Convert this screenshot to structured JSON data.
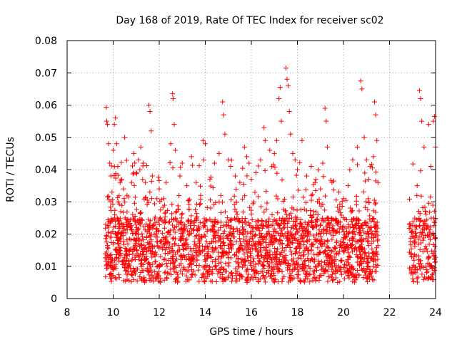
{
  "chart_data": {
    "type": "scatter",
    "title": "Day 168 of 2019, Rate Of TEC Index for receiver sc02",
    "xlabel": "GPS time / hours",
    "ylabel": "ROTI / TECUs",
    "xlim": [
      8,
      24
    ],
    "ylim": [
      0,
      0.08
    ],
    "x_ticks": [
      8,
      10,
      12,
      14,
      16,
      18,
      20,
      22,
      24
    ],
    "x_tick_labels": [
      "8",
      "10",
      "12",
      "14",
      "16",
      "18",
      "20",
      "22",
      "24"
    ],
    "y_ticks": [
      0,
      0.01,
      0.02,
      0.03,
      0.04,
      0.05,
      0.06,
      0.07,
      0.08
    ],
    "y_tick_labels": [
      "0",
      "0.01",
      "0.02",
      "0.03",
      "0.04",
      "0.05",
      "0.06",
      "0.07",
      "0.08"
    ],
    "grid": true,
    "marker": "+",
    "color": "#ff0000",
    "series": [
      {
        "name": "sc02",
        "points": [
          [
            9.7,
            0.0593
          ],
          [
            9.72,
            0.055
          ],
          [
            9.75,
            0.054
          ],
          [
            9.8,
            0.048
          ],
          [
            9.85,
            0.042
          ],
          [
            9.9,
            0.038
          ],
          [
            9.95,
            0.033
          ],
          [
            10.0,
            0.046
          ],
          [
            10.05,
            0.054
          ],
          [
            10.1,
            0.056
          ],
          [
            10.15,
            0.048
          ],
          [
            10.2,
            0.041
          ],
          [
            10.3,
            0.036
          ],
          [
            10.45,
            0.034
          ],
          [
            10.5,
            0.05
          ],
          [
            10.6,
            0.032
          ],
          [
            10.8,
            0.036
          ],
          [
            10.9,
            0.045
          ],
          [
            11.0,
            0.039
          ],
          [
            11.1,
            0.043
          ],
          [
            11.2,
            0.047
          ],
          [
            11.3,
            0.042
          ],
          [
            11.4,
            0.036
          ],
          [
            11.55,
            0.06
          ],
          [
            11.6,
            0.058
          ],
          [
            11.65,
            0.052
          ],
          [
            11.7,
            0.038
          ],
          [
            11.9,
            0.031
          ],
          [
            12.0,
            0.034
          ],
          [
            12.2,
            0.031
          ],
          [
            12.3,
            0.036
          ],
          [
            12.5,
            0.048
          ],
          [
            12.58,
            0.0635
          ],
          [
            12.6,
            0.062
          ],
          [
            12.65,
            0.054
          ],
          [
            12.7,
            0.046
          ],
          [
            12.9,
            0.038
          ],
          [
            13.0,
            0.042
          ],
          [
            13.2,
            0.035
          ],
          [
            13.4,
            0.044
          ],
          [
            13.6,
            0.036
          ],
          [
            13.8,
            0.032
          ],
          [
            13.9,
            0.049
          ],
          [
            14.0,
            0.048
          ],
          [
            14.2,
            0.037
          ],
          [
            14.4,
            0.042
          ],
          [
            14.6,
            0.045
          ],
          [
            14.75,
            0.061
          ],
          [
            14.8,
            0.057
          ],
          [
            14.85,
            0.051
          ],
          [
            15.0,
            0.043
          ],
          [
            15.1,
            0.041
          ],
          [
            15.3,
            0.038
          ],
          [
            15.5,
            0.036
          ],
          [
            15.7,
            0.047
          ],
          [
            15.8,
            0.044
          ],
          [
            15.9,
            0.042
          ],
          [
            16.0,
            0.037
          ],
          [
            16.2,
            0.039
          ],
          [
            16.4,
            0.043
          ],
          [
            16.55,
            0.053
          ],
          [
            16.6,
            0.049
          ],
          [
            16.8,
            0.046
          ],
          [
            17.0,
            0.045
          ],
          [
            17.1,
            0.049
          ],
          [
            17.2,
            0.062
          ],
          [
            17.25,
            0.0655
          ],
          [
            17.3,
            0.055
          ],
          [
            17.5,
            0.0715
          ],
          [
            17.55,
            0.068
          ],
          [
            17.6,
            0.066
          ],
          [
            17.65,
            0.058
          ],
          [
            17.7,
            0.051
          ],
          [
            17.8,
            0.045
          ],
          [
            17.9,
            0.043
          ],
          [
            18.0,
            0.04
          ],
          [
            18.2,
            0.049
          ],
          [
            18.4,
            0.038
          ],
          [
            18.6,
            0.041
          ],
          [
            18.8,
            0.037
          ],
          [
            19.0,
            0.034
          ],
          [
            19.1,
            0.042
          ],
          [
            19.2,
            0.059
          ],
          [
            19.25,
            0.055
          ],
          [
            19.3,
            0.047
          ],
          [
            19.5,
            0.036
          ],
          [
            19.8,
            0.033
          ],
          [
            20.0,
            0.031
          ],
          [
            20.2,
            0.035
          ],
          [
            20.4,
            0.043
          ],
          [
            20.6,
            0.047
          ],
          [
            20.75,
            0.0675
          ],
          [
            20.8,
            0.065
          ],
          [
            20.9,
            0.05
          ],
          [
            21.0,
            0.043
          ],
          [
            21.1,
            0.037
          ],
          [
            21.3,
            0.044
          ],
          [
            21.35,
            0.061
          ],
          [
            21.4,
            0.057
          ],
          [
            21.45,
            0.049
          ],
          [
            23.2,
            0.035
          ],
          [
            23.3,
            0.0645
          ],
          [
            23.35,
            0.062
          ],
          [
            23.4,
            0.055
          ],
          [
            23.5,
            0.047
          ],
          [
            23.7,
            0.054
          ],
          [
            23.8,
            0.041
          ],
          [
            23.9,
            0.055
          ],
          [
            23.95,
            0.0565
          ],
          [
            24.0,
            0.047
          ]
        ]
      }
    ]
  }
}
